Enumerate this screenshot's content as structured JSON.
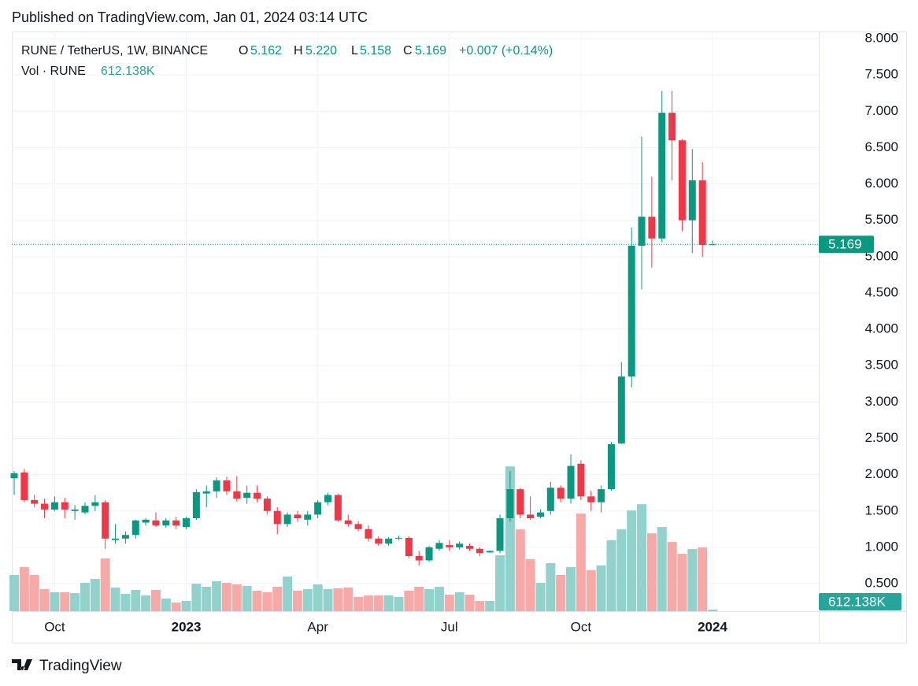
{
  "header": "Published on TradingView.com, Jan 01, 2024 03:14 UTC",
  "legend": {
    "symbol": "RUNE / TetherUS, 1W, BINANCE",
    "ohlc": [
      {
        "key": "O",
        "value": "5.162"
      },
      {
        "key": "H",
        "value": "5.220"
      },
      {
        "key": "L",
        "value": "5.158"
      },
      {
        "key": "C",
        "value": "5.169"
      }
    ],
    "change": "+0.007 (+0.14%)",
    "volume_name": "Vol · RUNE",
    "volume_value": "612.138K"
  },
  "footer": "TradingView",
  "chart_data": {
    "type": "candlestick",
    "up_color": "#089981",
    "down_color": "#f23645",
    "up_volume_color": "#92d2cc",
    "down_volume_color": "#f7a9a8",
    "grid": true,
    "xlim": [
      -0.233,
      79.5
    ],
    "xticks": [
      {
        "value": 4,
        "label": "Oct"
      },
      {
        "value": 17,
        "label": "2023"
      },
      {
        "value": 30,
        "label": "Apr"
      },
      {
        "value": 43,
        "label": "Jul"
      },
      {
        "value": 56,
        "label": "Oct"
      },
      {
        "value": 69,
        "label": "2024"
      }
    ],
    "ylim": [
      0.121,
      8.098
    ],
    "yticks": [
      {
        "value": 8,
        "label": "8.000"
      },
      {
        "value": 7.5,
        "label": "7.500"
      },
      {
        "value": 7,
        "label": "7.000"
      },
      {
        "value": 6.5,
        "label": "6.500"
      },
      {
        "value": 6,
        "label": "6.000"
      },
      {
        "value": 5.5,
        "label": "5.500"
      },
      {
        "value": 5,
        "label": "5.000"
      },
      {
        "value": 4.5,
        "label": "4.500"
      },
      {
        "value": 4,
        "label": "4.000"
      },
      {
        "value": 3.5,
        "label": "3.500"
      },
      {
        "value": 3,
        "label": "3.000"
      },
      {
        "value": 2.5,
        "label": "2.500"
      },
      {
        "value": 2,
        "label": "2.000"
      },
      {
        "value": 1.5,
        "label": "1.500"
      },
      {
        "value": 1,
        "label": "1.000"
      },
      {
        "value": 0.5,
        "label": "0.500"
      }
    ],
    "volume_lim": [
      0,
      100000000
    ],
    "open": [
      1.95,
      2.03,
      1.65,
      1.6,
      1.52,
      1.62,
      1.5,
      1.48,
      1.57,
      1.62,
      1.1,
      1.12,
      1.17,
      1.34,
      1.37,
      1.3,
      1.37,
      1.28,
      1.4,
      1.74,
      1.77,
      1.92,
      1.77,
      1.68,
      1.75,
      1.67,
      1.5,
      1.32,
      1.45,
      1.38,
      1.45,
      1.62,
      1.72,
      1.37,
      1.32,
      1.25,
      1.12,
      1.05,
      1.12,
      1.13,
      0.88,
      0.82,
      0.98,
      1.03,
      1.0,
      1.02,
      0.98,
      0.93,
      0.95,
      1.4,
      1.8,
      1.45,
      1.42,
      1.5,
      1.82,
      1.67,
      2.15,
      1.7,
      1.62,
      1.8,
      2.43,
      3.35,
      5.15,
      5.55,
      5.25,
      6.98,
      6.6,
      5.5,
      6.05,
      5.162
    ],
    "high": [
      2.05,
      2.08,
      1.72,
      1.67,
      1.7,
      1.68,
      1.58,
      1.62,
      1.72,
      1.65,
      1.32,
      1.22,
      1.38,
      1.4,
      1.48,
      1.4,
      1.42,
      1.42,
      1.8,
      1.85,
      1.96,
      1.97,
      1.98,
      1.85,
      1.85,
      1.7,
      1.55,
      1.48,
      1.5,
      1.5,
      1.65,
      1.75,
      1.74,
      1.45,
      1.36,
      1.3,
      1.15,
      1.14,
      1.16,
      1.15,
      0.95,
      1.02,
      1.1,
      1.1,
      1.08,
      1.05,
      1.0,
      0.96,
      1.45,
      2.05,
      1.82,
      1.7,
      1.52,
      1.9,
      1.85,
      2.28,
      2.2,
      1.78,
      1.85,
      2.45,
      3.55,
      5.4,
      6.65,
      6.1,
      7.28,
      7.28,
      6.62,
      6.48,
      6.3,
      5.22
    ],
    "low": [
      1.72,
      1.62,
      1.55,
      1.4,
      1.5,
      1.4,
      1.38,
      1.45,
      1.5,
      0.98,
      1.05,
      1.05,
      1.12,
      1.3,
      1.28,
      1.27,
      1.25,
      1.25,
      1.38,
      1.55,
      1.68,
      1.72,
      1.63,
      1.6,
      1.62,
      1.45,
      1.18,
      1.28,
      1.35,
      1.3,
      1.4,
      1.58,
      1.35,
      1.28,
      1.22,
      1.08,
      1.02,
      1.02,
      1.1,
      0.85,
      0.75,
      0.8,
      0.95,
      0.95,
      0.97,
      0.95,
      0.88,
      0.92,
      0.92,
      1.35,
      1.4,
      1.38,
      1.4,
      1.45,
      1.62,
      1.6,
      1.65,
      1.5,
      1.48,
      1.78,
      2.42,
      3.2,
      4.55,
      4.85,
      5.2,
      6.05,
      5.35,
      5.05,
      5.0,
      5.158
    ],
    "close": [
      2.02,
      1.65,
      1.6,
      1.52,
      1.62,
      1.52,
      1.52,
      1.57,
      1.62,
      1.12,
      1.12,
      1.17,
      1.37,
      1.38,
      1.3,
      1.37,
      1.3,
      1.4,
      1.76,
      1.77,
      1.92,
      1.77,
      1.67,
      1.75,
      1.67,
      1.5,
      1.32,
      1.45,
      1.4,
      1.45,
      1.62,
      1.72,
      1.37,
      1.32,
      1.25,
      1.12,
      1.05,
      1.12,
      1.13,
      0.88,
      0.82,
      1.0,
      1.06,
      1.0,
      1.05,
      0.98,
      0.92,
      0.95,
      1.4,
      1.8,
      1.45,
      1.4,
      1.48,
      1.82,
      1.67,
      2.12,
      1.7,
      1.62,
      1.8,
      2.42,
      3.35,
      5.15,
      5.55,
      5.25,
      6.98,
      6.6,
      5.5,
      6.05,
      5.16,
      5.169
    ],
    "volume": [
      13800000,
      16800000,
      13800000,
      8400000,
      7200000,
      7200000,
      6900000,
      10800000,
      12300000,
      20100000,
      9000000,
      6600000,
      8100000,
      6000000,
      8100000,
      4800000,
      3300000,
      3900000,
      10500000,
      9300000,
      11400000,
      10800000,
      10200000,
      9600000,
      7800000,
      7200000,
      9300000,
      13200000,
      7800000,
      8400000,
      10200000,
      8400000,
      8700000,
      9000000,
      5400000,
      6000000,
      6000000,
      6000000,
      5400000,
      7800000,
      9300000,
      8400000,
      9300000,
      6300000,
      7200000,
      6300000,
      3900000,
      3900000,
      21300000,
      55200000,
      31200000,
      19800000,
      10800000,
      18300000,
      13800000,
      16800000,
      37200000,
      15600000,
      17400000,
      27000000,
      31200000,
      38400000,
      40800000,
      29700000,
      32100000,
      26400000,
      21900000,
      23700000,
      24300000,
      612138
    ]
  }
}
